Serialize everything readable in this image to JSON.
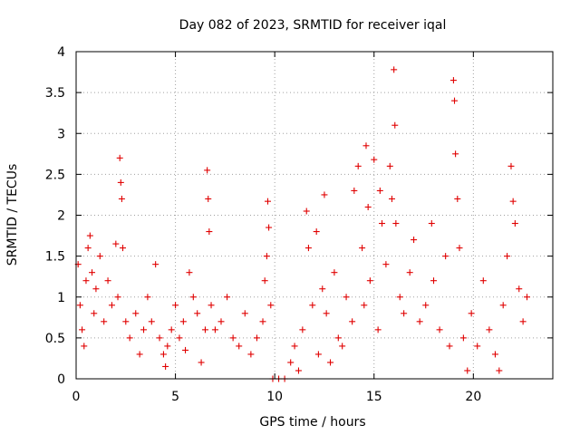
{
  "chart_data": {
    "type": "scatter",
    "title": "Day 082 of 2023, SRMTID for receiver iqal",
    "xlabel": "GPS time / hours",
    "ylabel": "SRMTID / TECUs",
    "xlim": [
      0,
      24
    ],
    "ylim": [
      0,
      4
    ],
    "xticks": [
      0,
      5,
      10,
      15,
      20
    ],
    "xtick_labels": [
      "0",
      "5",
      "10",
      "15",
      "20"
    ],
    "yticks": [
      0,
      0.5,
      1,
      1.5,
      2,
      2.5,
      3,
      3.5,
      4
    ],
    "ytick_labels": [
      "0",
      "0.5",
      "1",
      "1.5",
      "2",
      "2.5",
      "3",
      "3.5",
      "4"
    ],
    "grid": true,
    "marker": "+",
    "color": "#e00000",
    "series": [
      {
        "name": "SRMTID",
        "points": [
          [
            0.1,
            1.4
          ],
          [
            0.2,
            0.9
          ],
          [
            0.3,
            0.6
          ],
          [
            0.4,
            0.4
          ],
          [
            0.5,
            1.2
          ],
          [
            0.6,
            1.6
          ],
          [
            0.7,
            1.75
          ],
          [
            0.8,
            1.3
          ],
          [
            0.9,
            0.8
          ],
          [
            1.0,
            1.1
          ],
          [
            1.2,
            1.5
          ],
          [
            1.4,
            0.7
          ],
          [
            1.6,
            1.2
          ],
          [
            1.8,
            0.9
          ],
          [
            2.0,
            1.65
          ],
          [
            2.1,
            1.0
          ],
          [
            2.2,
            2.7
          ],
          [
            2.25,
            2.4
          ],
          [
            2.3,
            2.2
          ],
          [
            2.35,
            1.6
          ],
          [
            2.5,
            0.7
          ],
          [
            2.7,
            0.5
          ],
          [
            3.0,
            0.8
          ],
          [
            3.2,
            0.3
          ],
          [
            3.4,
            0.6
          ],
          [
            3.6,
            1.0
          ],
          [
            3.8,
            0.7
          ],
          [
            4.0,
            1.4
          ],
          [
            4.2,
            0.5
          ],
          [
            4.4,
            0.3
          ],
          [
            4.5,
            0.15
          ],
          [
            4.6,
            0.4
          ],
          [
            4.8,
            0.6
          ],
          [
            5.0,
            0.9
          ],
          [
            5.2,
            0.5
          ],
          [
            5.4,
            0.7
          ],
          [
            5.5,
            0.35
          ],
          [
            5.7,
            1.3
          ],
          [
            5.9,
            1.0
          ],
          [
            6.1,
            0.8
          ],
          [
            6.3,
            0.2
          ],
          [
            6.5,
            0.6
          ],
          [
            6.6,
            2.55
          ],
          [
            6.65,
            2.2
          ],
          [
            6.7,
            1.8
          ],
          [
            6.8,
            0.9
          ],
          [
            7.0,
            0.6
          ],
          [
            7.3,
            0.7
          ],
          [
            7.6,
            1.0
          ],
          [
            7.9,
            0.5
          ],
          [
            8.2,
            0.4
          ],
          [
            8.5,
            0.8
          ],
          [
            8.8,
            0.3
          ],
          [
            9.1,
            0.5
          ],
          [
            9.4,
            0.7
          ],
          [
            9.5,
            1.2
          ],
          [
            9.6,
            1.5
          ],
          [
            9.65,
            2.17
          ],
          [
            9.7,
            1.85
          ],
          [
            9.8,
            0.9
          ],
          [
            9.9,
            0.0
          ],
          [
            10.2,
            0.0
          ],
          [
            10.5,
            0.0
          ],
          [
            10.8,
            0.2
          ],
          [
            11.0,
            0.4
          ],
          [
            11.2,
            0.1
          ],
          [
            11.4,
            0.6
          ],
          [
            11.6,
            2.05
          ],
          [
            11.7,
            1.6
          ],
          [
            11.9,
            0.9
          ],
          [
            12.1,
            1.8
          ],
          [
            12.2,
            0.3
          ],
          [
            12.4,
            1.1
          ],
          [
            12.5,
            2.25
          ],
          [
            12.6,
            0.8
          ],
          [
            12.8,
            0.2
          ],
          [
            13.0,
            1.3
          ],
          [
            13.2,
            0.5
          ],
          [
            13.4,
            0.4
          ],
          [
            13.6,
            1.0
          ],
          [
            13.9,
            0.7
          ],
          [
            14.0,
            2.3
          ],
          [
            14.2,
            2.6
          ],
          [
            14.4,
            1.6
          ],
          [
            14.5,
            0.9
          ],
          [
            14.6,
            2.85
          ],
          [
            14.7,
            2.1
          ],
          [
            14.8,
            1.2
          ],
          [
            15.0,
            2.68
          ],
          [
            15.2,
            0.6
          ],
          [
            15.3,
            2.3
          ],
          [
            15.4,
            1.9
          ],
          [
            15.6,
            1.4
          ],
          [
            15.8,
            2.6
          ],
          [
            15.9,
            2.2
          ],
          [
            16.0,
            3.78
          ],
          [
            16.05,
            3.1
          ],
          [
            16.1,
            1.9
          ],
          [
            16.3,
            1.0
          ],
          [
            16.5,
            0.8
          ],
          [
            16.8,
            1.3
          ],
          [
            17.0,
            1.7
          ],
          [
            17.3,
            0.7
          ],
          [
            17.6,
            0.9
          ],
          [
            17.9,
            1.9
          ],
          [
            18.0,
            1.2
          ],
          [
            18.3,
            0.6
          ],
          [
            18.6,
            1.5
          ],
          [
            18.8,
            0.4
          ],
          [
            19.0,
            3.65
          ],
          [
            19.05,
            3.4
          ],
          [
            19.1,
            2.75
          ],
          [
            19.2,
            2.2
          ],
          [
            19.3,
            1.6
          ],
          [
            19.5,
            0.5
          ],
          [
            19.7,
            0.1
          ],
          [
            19.9,
            0.8
          ],
          [
            20.2,
            0.4
          ],
          [
            20.5,
            1.2
          ],
          [
            20.8,
            0.6
          ],
          [
            21.1,
            0.3
          ],
          [
            21.3,
            0.1
          ],
          [
            21.5,
            0.9
          ],
          [
            21.7,
            1.5
          ],
          [
            21.9,
            2.6
          ],
          [
            22.0,
            2.17
          ],
          [
            22.1,
            1.9
          ],
          [
            22.3,
            1.1
          ],
          [
            22.5,
            0.7
          ],
          [
            22.7,
            1.0
          ]
        ]
      }
    ]
  }
}
